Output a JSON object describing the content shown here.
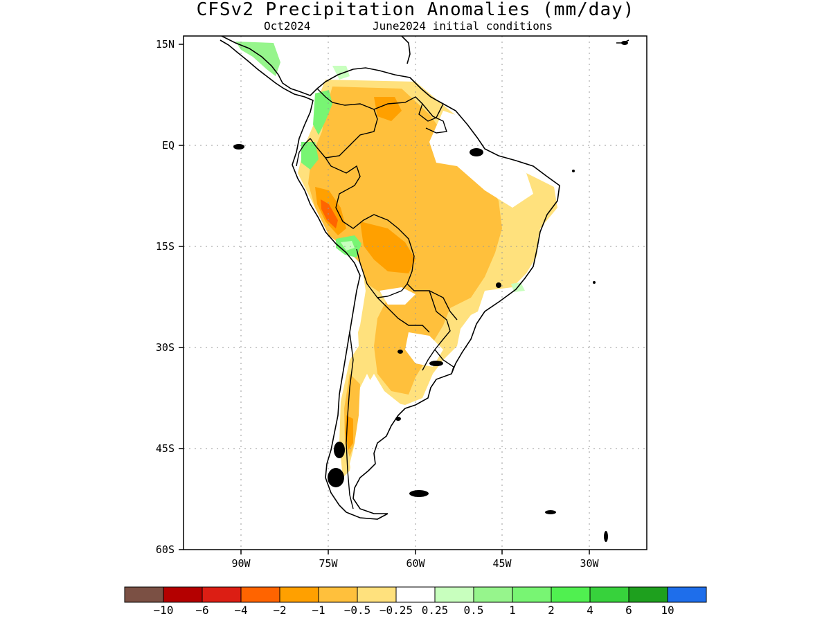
{
  "title": "CFSv2 Precipitation Anomalies (mm/day)",
  "subtitle_left": "Oct2024",
  "subtitle_right": "June2024 initial conditions",
  "lat_labels": [
    "15N",
    "EQ",
    "15S",
    "30S",
    "45S",
    "60S"
  ],
  "lon_labels": [
    "90W",
    "75W",
    "60W",
    "45W",
    "30W"
  ],
  "map_extent": {
    "lon_min": -100,
    "lon_max": -20,
    "lat_min": -60,
    "lat_max": 15
  },
  "grid": true,
  "colorbar": {
    "colors": [
      "#7b5044",
      "#b40000",
      "#dc1e14",
      "#ff6400",
      "#ffa000",
      "#ffc03c",
      "#ffe17d",
      "#ffffff",
      "#c8ffbe",
      "#96f58c",
      "#78f573",
      "#50f050",
      "#37d23c",
      "#1ea01e",
      "#1e6eeb"
    ],
    "labels": [
      "−10",
      "−6",
      "−4",
      "−2",
      "−1",
      "−0.5",
      "−0.25",
      "0.25",
      "0.5",
      "1",
      "2",
      "4",
      "6",
      "10"
    ]
  }
}
